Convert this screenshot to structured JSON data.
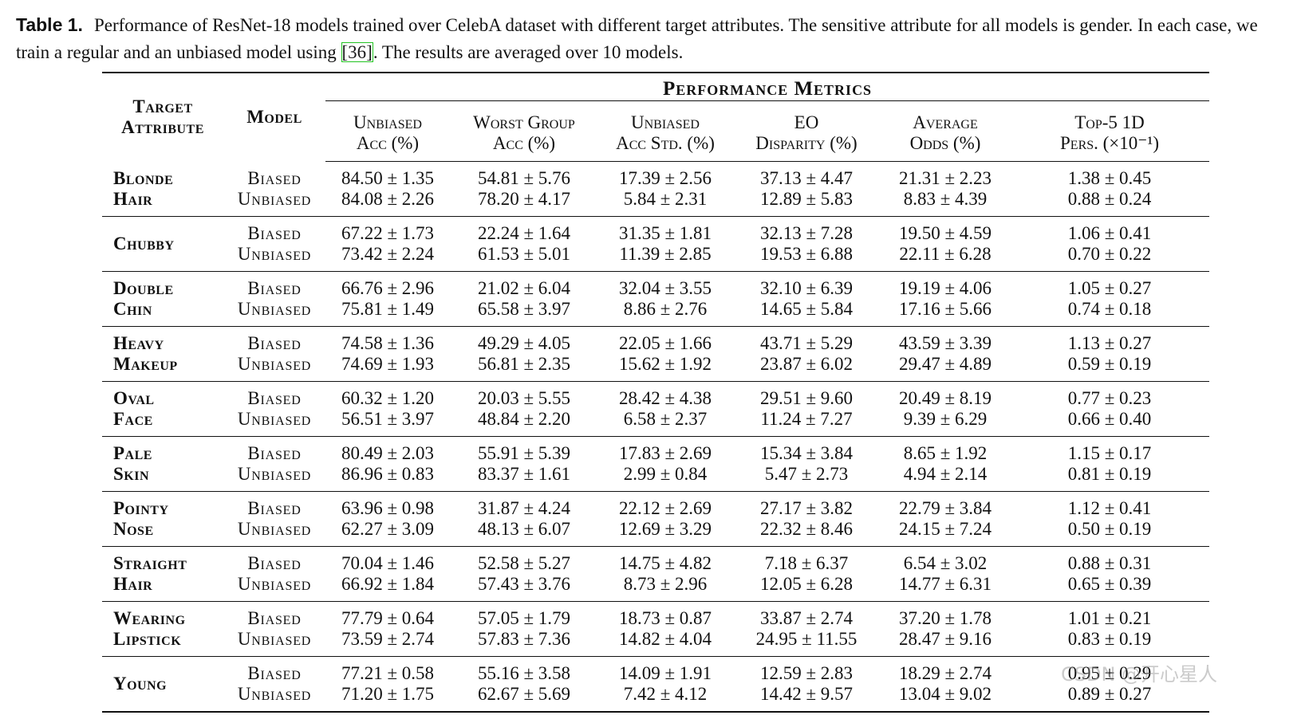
{
  "caption": {
    "label": "Table 1.",
    "text_before": "Performance of ResNet-18 models trained over CelebA dataset with different target attributes. The sensitive attribute for all models is gender. In each case, we train a regular and an unbiased model using ",
    "citation": "[36]",
    "text_after": ". The results are averaged over 10 models."
  },
  "header": {
    "target_attribute": [
      "Target",
      "Attribute"
    ],
    "model": "Model",
    "performance_metrics": "Performance Metrics",
    "columns": [
      [
        "Unbiased",
        "Acc (%)"
      ],
      [
        "Worst Group",
        "Acc (%)"
      ],
      [
        "Unbiased",
        "Acc Std. (%)"
      ],
      [
        "EO",
        "Disparity (%)"
      ],
      [
        "Average",
        "Odds (%)"
      ],
      [
        "Top-5 1D",
        "Pers. (×10⁻¹)"
      ]
    ]
  },
  "models": [
    "Biased",
    "Unbiased"
  ],
  "rows": [
    {
      "attribute": [
        "Blonde",
        "Hair"
      ],
      "biased": [
        "84.50 ± 1.35",
        "54.81 ± 5.76",
        "17.39 ± 2.56",
        "37.13 ± 4.47",
        "21.31 ± 2.23",
        "1.38 ± 0.45"
      ],
      "unbiased": [
        "84.08 ± 2.26",
        "78.20 ± 4.17",
        "5.84 ± 2.31",
        "12.89 ± 5.83",
        "8.83 ± 4.39",
        "0.88 ± 0.24"
      ]
    },
    {
      "attribute": [
        "Chubby"
      ],
      "biased": [
        "67.22 ± 1.73",
        "22.24 ± 1.64",
        "31.35 ± 1.81",
        "32.13 ± 7.28",
        "19.50 ± 4.59",
        "1.06 ± 0.41"
      ],
      "unbiased": [
        "73.42 ± 2.24",
        "61.53 ± 5.01",
        "11.39 ± 2.85",
        "19.53 ± 6.88",
        "22.11 ± 6.28",
        "0.70 ± 0.22"
      ]
    },
    {
      "attribute": [
        "Double",
        "Chin"
      ],
      "biased": [
        "66.76 ± 2.96",
        "21.02 ± 6.04",
        "32.04 ± 3.55",
        "32.10 ± 6.39",
        "19.19 ± 4.06",
        "1.05 ± 0.27"
      ],
      "unbiased": [
        "75.81 ± 1.49",
        "65.58 ± 3.97",
        "8.86 ± 2.76",
        "14.65 ± 5.84",
        "17.16 ± 5.66",
        "0.74 ± 0.18"
      ]
    },
    {
      "attribute": [
        "Heavy",
        "Makeup"
      ],
      "biased": [
        "74.58 ± 1.36",
        "49.29 ± 4.05",
        "22.05 ± 1.66",
        "43.71 ± 5.29",
        "43.59 ± 3.39",
        "1.13 ± 0.27"
      ],
      "unbiased": [
        "74.69 ± 1.93",
        "56.81 ± 2.35",
        "15.62 ± 1.92",
        "23.87 ± 6.02",
        "29.47 ± 4.89",
        "0.59 ± 0.19"
      ]
    },
    {
      "attribute": [
        "Oval",
        "Face"
      ],
      "biased": [
        "60.32 ± 1.20",
        "20.03 ± 5.55",
        "28.42 ± 4.38",
        "29.51 ± 9.60",
        "20.49 ± 8.19",
        "0.77 ± 0.23"
      ],
      "unbiased": [
        "56.51 ± 3.97",
        "48.84 ± 2.20",
        "6.58 ± 2.37",
        "11.24 ± 7.27",
        "9.39 ± 6.29",
        "0.66 ± 0.40"
      ]
    },
    {
      "attribute": [
        "Pale",
        "Skin"
      ],
      "biased": [
        "80.49 ± 2.03",
        "55.91 ± 5.39",
        "17.83 ± 2.69",
        "15.34 ± 3.84",
        "8.65 ± 1.92",
        "1.15 ± 0.17"
      ],
      "unbiased": [
        "86.96 ± 0.83",
        "83.37 ± 1.61",
        "2.99 ± 0.84",
        "5.47 ± 2.73",
        "4.94 ± 2.14",
        "0.81 ± 0.19"
      ]
    },
    {
      "attribute": [
        "Pointy",
        "Nose"
      ],
      "biased": [
        "63.96 ± 0.98",
        "31.87 ± 4.24",
        "22.12 ± 2.69",
        "27.17 ± 3.82",
        "22.79 ± 3.84",
        "1.12 ± 0.41"
      ],
      "unbiased": [
        "62.27 ± 3.09",
        "48.13 ± 6.07",
        "12.69 ± 3.29",
        "22.32 ± 8.46",
        "24.15 ± 7.24",
        "0.50 ± 0.19"
      ]
    },
    {
      "attribute": [
        "Straight",
        "Hair"
      ],
      "biased": [
        "70.04 ± 1.46",
        "52.58 ± 5.27",
        "14.75 ± 4.82",
        "7.18 ± 6.37",
        "6.54 ± 3.02",
        "0.88 ± 0.31"
      ],
      "unbiased": [
        "66.92 ± 1.84",
        "57.43 ± 3.76",
        "8.73 ± 2.96",
        "12.05 ± 6.28",
        "14.77 ± 6.31",
        "0.65 ± 0.39"
      ]
    },
    {
      "attribute": [
        "Wearing",
        "Lipstick"
      ],
      "biased": [
        "77.79 ± 0.64",
        "57.05 ± 1.79",
        "18.73 ± 0.87",
        "33.87 ± 2.74",
        "37.20 ± 1.78",
        "1.01 ± 0.21"
      ],
      "unbiased": [
        "73.59 ± 2.74",
        "57.83 ± 7.36",
        "14.82 ± 4.04",
        "24.95 ± 11.55",
        "28.47 ± 9.16",
        "0.83 ± 0.19"
      ]
    },
    {
      "attribute": [
        "Young"
      ],
      "biased": [
        "77.21 ± 0.58",
        "55.16 ± 3.58",
        "14.09 ± 1.91",
        "12.59 ± 2.83",
        "18.29 ± 2.74",
        "0.95 ± 0.29"
      ],
      "unbiased": [
        "71.20 ± 1.75",
        "62.67 ± 5.69",
        "7.42 ± 4.12",
        "14.42 ± 9.57",
        "13.04 ± 9.02",
        "0.89 ± 0.27"
      ]
    }
  ],
  "watermark": "CSDN @开心星人"
}
